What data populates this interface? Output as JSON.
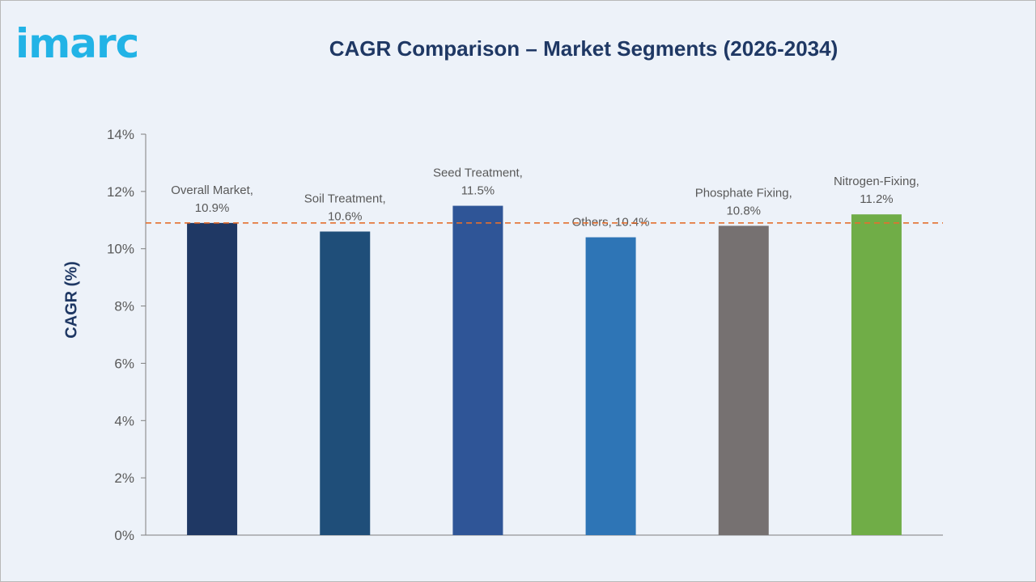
{
  "logo": {
    "text": "imarc"
  },
  "colors": {
    "title": "#1f3864",
    "reference_line": "#e46f2e",
    "axis": "#7f7f7f",
    "tick_text": "#595959"
  },
  "chart_data": {
    "type": "bar",
    "title": "CAGR Comparison – Market Segments (2026-2034)",
    "ylabel": "CAGR (%)",
    "xlabel": "",
    "ylim": [
      0,
      14
    ],
    "y_ticks": [
      0,
      2,
      4,
      6,
      8,
      10,
      12,
      14
    ],
    "y_tick_labels": [
      "0%",
      "2%",
      "4%",
      "6%",
      "8%",
      "10%",
      "12%",
      "14%"
    ],
    "grid": false,
    "reference_line": {
      "value": 10.9,
      "style": "dashed"
    },
    "categories": [
      "Overall Market",
      "Soil Treatment",
      "Seed Treatment",
      "Others",
      "Phosphate Fixing",
      "Nitrogen-Fixing"
    ],
    "values": [
      10.9,
      10.6,
      11.5,
      10.4,
      10.8,
      11.2
    ],
    "data_labels": [
      [
        "Overall Market,",
        "10.9%"
      ],
      [
        "Soil Treatment,",
        "10.6%"
      ],
      [
        "Seed Treatment,",
        "11.5%"
      ],
      [
        "Others, 10.4%"
      ],
      [
        "Phosphate Fixing,",
        "10.8%"
      ],
      [
        "Nitrogen-Fixing,",
        "11.2%"
      ]
    ],
    "bar_colors": [
      "#1f3864",
      "#1f4e79",
      "#2f5597",
      "#2e75b6",
      "#767171",
      "#70ad47"
    ]
  }
}
